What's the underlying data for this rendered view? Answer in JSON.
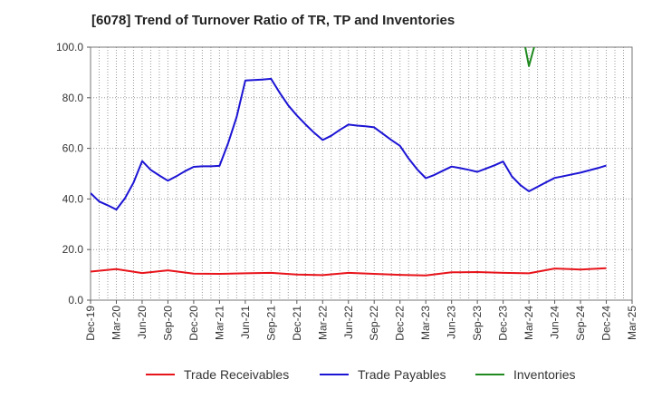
{
  "chart_data": {
    "type": "line",
    "title": "[6078]  Trend of Turnover Ratio of TR, TP and Inventories",
    "xlabel": "",
    "ylabel": "",
    "ylim": [
      0,
      100
    ],
    "yticks": [
      "0.0",
      "20.0",
      "40.0",
      "60.0",
      "80.0",
      "100.0"
    ],
    "grid": true,
    "legend_position": "bottom",
    "categories": [
      "Dec-19",
      "Jan-20",
      "Feb-20",
      "Mar-20",
      "Apr-20",
      "May-20",
      "Jun-20",
      "Jul-20",
      "Aug-20",
      "Sep-20",
      "Oct-20",
      "Nov-20",
      "Dec-20",
      "Jan-21",
      "Feb-21",
      "Mar-21",
      "Apr-21",
      "May-21",
      "Jun-21",
      "Jul-21",
      "Aug-21",
      "Sep-21",
      "Oct-21",
      "Nov-21",
      "Dec-21",
      "Jan-22",
      "Feb-22",
      "Mar-22",
      "Apr-22",
      "May-22",
      "Jun-22",
      "Jul-22",
      "Aug-22",
      "Sep-22",
      "Oct-22",
      "Nov-22",
      "Dec-22",
      "Jan-23",
      "Feb-23",
      "Mar-23",
      "Apr-23",
      "May-23",
      "Jun-23",
      "Jul-23",
      "Aug-23",
      "Sep-23",
      "Oct-23",
      "Nov-23",
      "Dec-23",
      "Jan-24",
      "Feb-24",
      "Mar-24",
      "Apr-24",
      "May-24",
      "Jun-24",
      "Jul-24",
      "Aug-24",
      "Sep-24",
      "Oct-24",
      "Nov-24",
      "Dec-24",
      "Jan-25",
      "Feb-25",
      "Mar-25"
    ],
    "tick_labels": [
      "Dec-19",
      "Mar-20",
      "Jun-20",
      "Sep-20",
      "Dec-20",
      "Mar-21",
      "Jun-21",
      "Sep-21",
      "Dec-21",
      "Mar-22",
      "Jun-22",
      "Sep-22",
      "Dec-22",
      "Mar-23",
      "Jun-23",
      "Sep-23",
      "Dec-23",
      "Mar-24",
      "Jun-24",
      "Sep-24",
      "Dec-24",
      "Mar-25"
    ],
    "series": [
      {
        "name": "Trade Receivables",
        "color": "#e8141b",
        "values": [
          11.3,
          null,
          null,
          12.3,
          null,
          null,
          10.7,
          null,
          null,
          11.8,
          null,
          null,
          10.5,
          null,
          null,
          10.4,
          null,
          null,
          10.6,
          null,
          null,
          10.8,
          null,
          null,
          10.1,
          null,
          null,
          9.9,
          null,
          null,
          10.8,
          null,
          null,
          10.4,
          null,
          null,
          10.0,
          null,
          null,
          9.8,
          null,
          null,
          11.0,
          null,
          null,
          11.1,
          null,
          null,
          10.8,
          null,
          null,
          10.6,
          null,
          null,
          12.5,
          null,
          null,
          12.1,
          null,
          null,
          12.6,
          null,
          null,
          null
        ]
      },
      {
        "name": "Trade Payables",
        "color": "#1c14d4",
        "values": [
          42.3,
          39.0,
          37.5,
          35.8,
          40.3,
          46.5,
          55.0,
          51.5,
          49.3,
          47.2,
          49.0,
          51.0,
          52.7,
          52.9,
          52.9,
          53.1,
          62.0,
          72.5,
          86.8,
          87.0,
          87.2,
          87.5,
          82.0,
          77.0,
          73.0,
          69.5,
          66.2,
          63.3,
          65.0,
          67.3,
          69.4,
          69.0,
          68.7,
          68.3,
          65.8,
          63.3,
          61.0,
          56.0,
          51.7,
          48.2,
          49.5,
          51.2,
          52.8,
          52.2,
          51.5,
          50.7,
          52.0,
          53.3,
          54.8,
          49.0,
          45.5,
          43.0,
          44.8,
          46.6,
          48.3,
          49.0,
          49.7,
          50.4,
          51.3,
          52.2,
          53.2,
          null,
          null,
          null
        ]
      },
      {
        "name": "Inventories",
        "color": "#1f8a1f",
        "values": [
          null,
          null,
          null,
          null,
          null,
          null,
          null,
          null,
          null,
          null,
          null,
          null,
          null,
          null,
          null,
          null,
          null,
          null,
          null,
          null,
          null,
          null,
          null,
          null,
          null,
          null,
          null,
          null,
          null,
          null,
          null,
          null,
          null,
          null,
          null,
          null,
          null,
          null,
          null,
          null,
          null,
          null,
          null,
          null,
          null,
          null,
          null,
          null,
          null,
          null,
          110.0,
          92.5,
          105.0,
          null,
          null,
          null,
          null,
          null,
          null,
          null,
          null,
          null,
          null,
          null
        ]
      }
    ]
  }
}
